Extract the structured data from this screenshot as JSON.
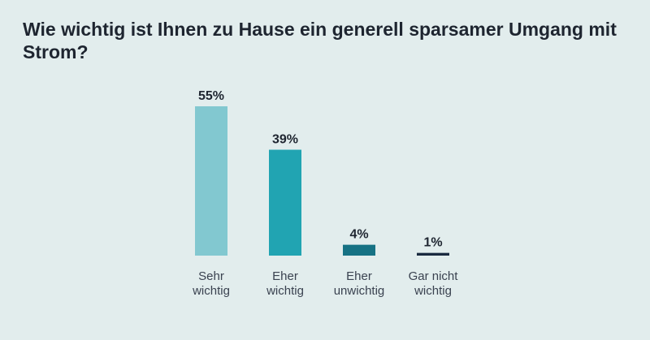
{
  "title": "Wie wichtig ist Ihnen zu Hause ein generell sparsamer Umgang mit Strom?",
  "chart_data": {
    "type": "bar",
    "title": "Wie wichtig ist Ihnen zu Hause ein generell sparsamer Umgang mit Strom?",
    "categories": [
      [
        "Sehr",
        "wichtig"
      ],
      [
        "Eher",
        "wichtig"
      ],
      [
        "Eher",
        "unwichtig"
      ],
      [
        "Gar nicht",
        "wichtig"
      ]
    ],
    "values": [
      55,
      39,
      4,
      1
    ],
    "value_labels": [
      "55%",
      "39%",
      "4%",
      "1%"
    ],
    "unit": "%",
    "colors": [
      "#82c8d0",
      "#21a4b2",
      "#167284",
      "#1a2a40"
    ],
    "ylim": [
      0,
      55
    ],
    "grid": false,
    "legend": "none"
  }
}
